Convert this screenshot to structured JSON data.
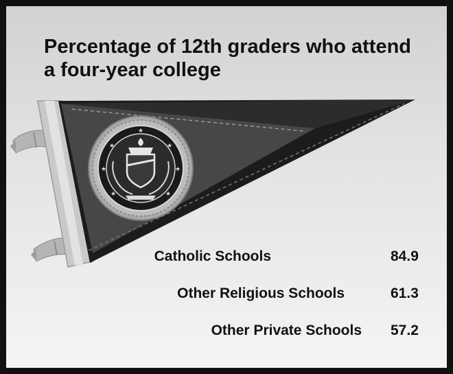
{
  "chart_data": {
    "type": "table",
    "title": "Percentage of 12th graders who attend a four-year college",
    "categories": [
      "Catholic Schools",
      "Other Religious Schools",
      "Other Private Schools"
    ],
    "values": [
      84.9,
      61.3,
      57.2
    ],
    "value_labels": [
      "84.9",
      "61.3",
      "57.2"
    ]
  },
  "colors": {
    "background_top": "#d2d2d2",
    "background_bottom": "#f4f4f4",
    "pennant_dark": "#1c1c1c",
    "pennant_mid": "#4a4a4a",
    "frame": "#111111"
  },
  "icons": [
    "pennant-icon",
    "school-seal-icon"
  ]
}
